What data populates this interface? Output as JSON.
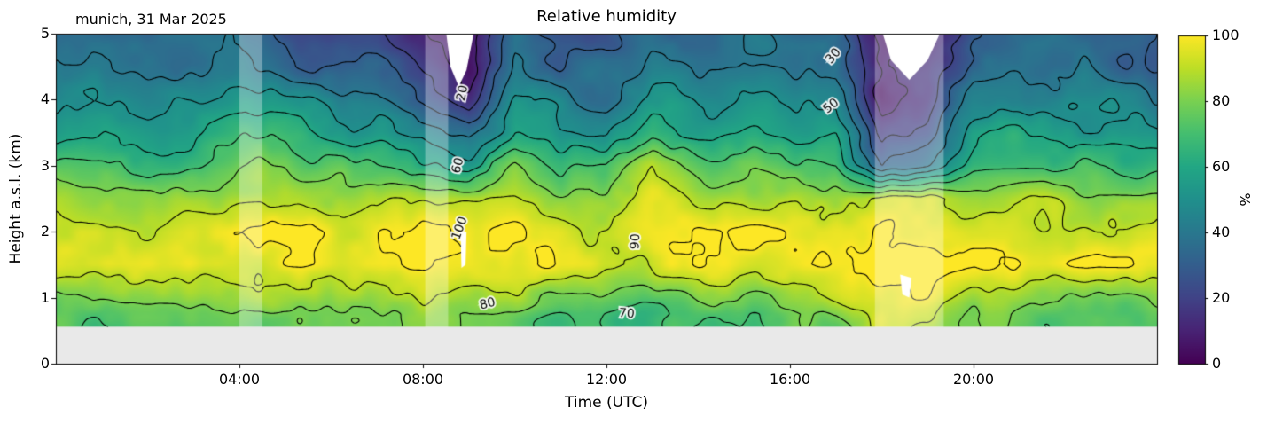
{
  "title": "Relative humidity",
  "annotation": "munich, 31 Mar 2025",
  "xlabel": "Time (UTC)",
  "ylabel": "Height a.s.l. (km)",
  "x_ticks": [
    {
      "t": 4,
      "label": "04:00"
    },
    {
      "t": 8,
      "label": "08:00"
    },
    {
      "t": 12,
      "label": "12:00"
    },
    {
      "t": 16,
      "label": "16:00"
    },
    {
      "t": 20,
      "label": "20:00"
    }
  ],
  "y_ticks": [
    0,
    1,
    2,
    3,
    4,
    5
  ],
  "colorbar": {
    "label": "%",
    "min": 0,
    "max": 100,
    "ticks": [
      0,
      20,
      40,
      60,
      80,
      100
    ],
    "colormap": "viridis"
  },
  "layout_colors": {
    "below_ground": "#e9e9e9",
    "frame": "#000000",
    "contour_line": "#000000"
  },
  "chart_data": {
    "type": "heatmap",
    "title": "Relative humidity",
    "xlabel": "Time (UTC)",
    "ylabel": "Height a.s.l. (km)",
    "units": "%",
    "xlim": [
      0,
      24
    ],
    "ylim": [
      0,
      5
    ],
    "no_data_below_km": 0.55,
    "x_hours": [
      0,
      1,
      2,
      3,
      4,
      5,
      6,
      7,
      8,
      9,
      10,
      11,
      12,
      13,
      14,
      15,
      16,
      17,
      18,
      19,
      20,
      21,
      22,
      23,
      24
    ],
    "heights_km": [
      0.5,
      0.75,
      1.0,
      1.5,
      2.0,
      2.5,
      3.0,
      3.5,
      4.0,
      4.5,
      5.0
    ],
    "values_percent": [
      [
        72,
        71,
        70,
        72,
        74,
        73,
        72,
        74,
        76,
        78,
        74,
        68,
        66,
        66,
        70,
        72,
        73,
        74,
        92,
        90,
        78,
        74,
        73,
        72,
        72
      ],
      [
        75,
        74,
        73,
        75,
        77,
        76,
        75,
        77,
        80,
        82,
        76,
        70,
        68,
        68,
        73,
        75,
        76,
        78,
        95,
        92,
        80,
        77,
        75,
        74,
        74
      ],
      [
        82,
        81,
        80,
        82,
        85,
        84,
        82,
        84,
        88,
        90,
        84,
        78,
        76,
        78,
        82,
        84,
        85,
        86,
        98,
        96,
        86,
        84,
        82,
        81,
        80
      ],
      [
        97,
        96,
        95,
        97,
        99,
        99,
        97,
        98,
        100,
        100,
        98,
        94,
        92,
        96,
        98,
        99,
        98,
        98,
        100,
        100,
        98,
        97,
        97,
        96,
        96
      ],
      [
        96,
        95,
        93,
        96,
        100,
        100,
        98,
        96,
        100,
        99,
        97,
        93,
        90,
        95,
        97,
        99,
        98,
        97,
        100,
        100,
        97,
        96,
        96,
        95,
        95
      ],
      [
        86,
        85,
        82,
        86,
        92,
        93,
        88,
        84,
        90,
        92,
        94,
        84,
        82,
        95,
        88,
        90,
        89,
        87,
        98,
        96,
        88,
        87,
        86,
        85,
        84
      ],
      [
        70,
        69,
        66,
        70,
        76,
        78,
        72,
        66,
        62,
        58,
        78,
        68,
        66,
        86,
        72,
        74,
        73,
        70,
        28,
        40,
        70,
        72,
        70,
        68,
        66
      ],
      [
        58,
        56,
        52,
        56,
        62,
        64,
        58,
        52,
        44,
        32,
        62,
        54,
        50,
        68,
        58,
        60,
        59,
        56,
        14,
        26,
        56,
        58,
        56,
        54,
        52
      ],
      [
        50,
        48,
        44,
        46,
        52,
        50,
        46,
        42,
        30,
        16,
        50,
        44,
        40,
        54,
        48,
        50,
        49,
        46,
        9,
        18,
        46,
        48,
        46,
        44,
        42
      ],
      [
        44,
        42,
        38,
        40,
        42,
        34,
        32,
        34,
        20,
        9,
        40,
        34,
        32,
        44,
        40,
        42,
        41,
        38,
        5,
        12,
        38,
        40,
        38,
        36,
        34
      ],
      [
        38,
        36,
        33,
        34,
        36,
        28,
        26,
        28,
        14,
        5,
        34,
        28,
        26,
        36,
        34,
        36,
        35,
        32,
        3,
        8,
        32,
        34,
        32,
        30,
        28
      ]
    ],
    "contour_levels": [
      10,
      20,
      30,
      40,
      50,
      60,
      70,
      80,
      90,
      100
    ],
    "contour_labels": [
      {
        "text": "20",
        "t": 8.87,
        "h": 4.1,
        "rot": -78
      },
      {
        "text": "30",
        "t": 16.95,
        "h": 4.66,
        "rot": -50
      },
      {
        "text": "50",
        "t": 16.9,
        "h": 3.9,
        "rot": -40
      },
      {
        "text": "60",
        "t": 8.77,
        "h": 3.0,
        "rot": -74
      },
      {
        "text": "100",
        "t": 8.81,
        "h": 2.05,
        "rot": -70
      },
      {
        "text": "90",
        "t": 12.64,
        "h": 1.85,
        "rot": -86
      },
      {
        "text": "80",
        "t": 9.41,
        "h": 0.9,
        "rot": -14
      },
      {
        "text": "70",
        "t": 12.44,
        "h": 0.75,
        "rot": 5
      }
    ],
    "masked_regions": [
      {
        "points": [
          [
            8.5,
            5.05
          ],
          [
            9.12,
            5.05
          ],
          [
            8.95,
            4.45
          ],
          [
            8.78,
            4.2
          ],
          [
            8.6,
            4.5
          ]
        ]
      },
      {
        "points": [
          [
            18.0,
            5.05
          ],
          [
            19.3,
            5.05
          ],
          [
            19.0,
            4.6
          ],
          [
            18.6,
            4.3
          ],
          [
            18.2,
            4.6
          ]
        ]
      },
      {
        "points": [
          [
            8.82,
            2.0
          ],
          [
            8.95,
            2.0
          ],
          [
            8.93,
            1.5
          ],
          [
            8.84,
            1.45
          ]
        ]
      },
      {
        "points": [
          [
            18.4,
            1.35
          ],
          [
            18.65,
            1.3
          ],
          [
            18.6,
            1.0
          ],
          [
            18.45,
            1.05
          ]
        ]
      }
    ],
    "pale_stripes_hours": [
      [
        4.0,
        4.5
      ],
      [
        8.05,
        8.55
      ],
      [
        17.85,
        19.35
      ]
    ]
  }
}
